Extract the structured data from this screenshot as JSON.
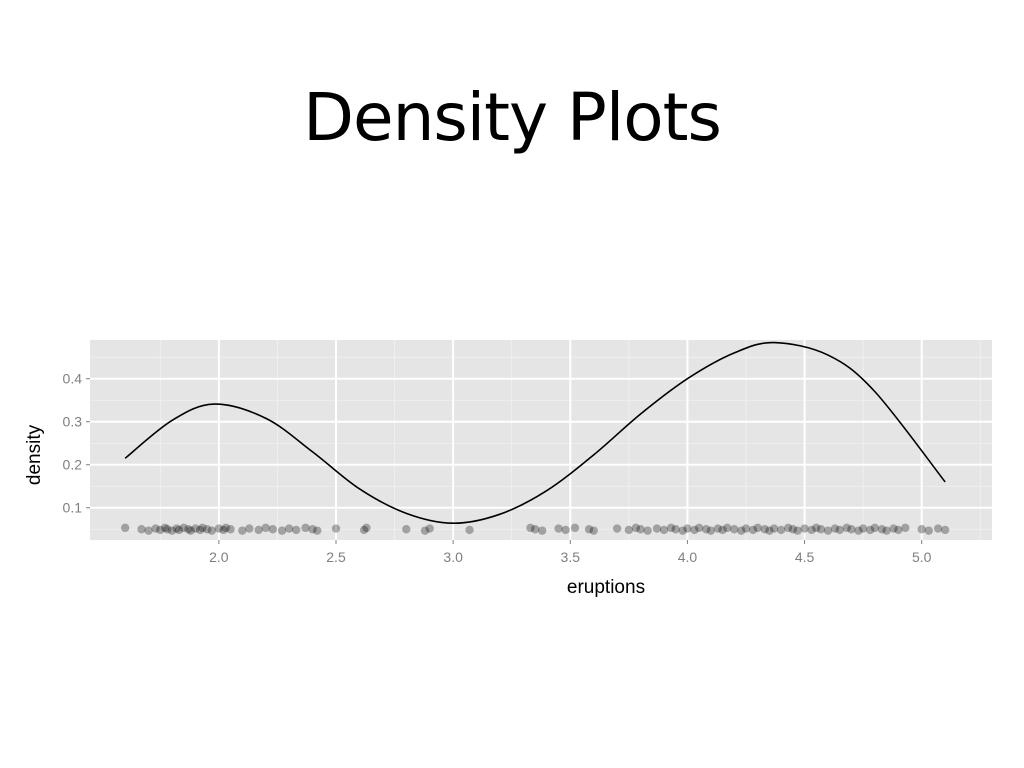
{
  "slide": {
    "title": "Density Plots"
  },
  "chart_data": {
    "type": "line",
    "xlabel": "eruptions",
    "ylabel": "density",
    "xlim": [
      1.45,
      5.3
    ],
    "ylim": [
      0.025,
      0.49
    ],
    "x_ticks": [
      "2.0",
      "2.5",
      "3.0",
      "3.5",
      "4.0",
      "4.5",
      "5.0"
    ],
    "y_ticks": [
      "0.1",
      "0.2",
      "0.3",
      "0.4"
    ],
    "grid": true,
    "colors": {
      "panel": "#e5e5e5",
      "grid": "#ffffff",
      "line": "#000000",
      "points": "#000000"
    },
    "series": [
      {
        "x": [
          1.6,
          1.8,
          1.98,
          2.2,
          2.4,
          2.6,
          2.8,
          3.0,
          3.2,
          3.4,
          3.6,
          3.8,
          4.0,
          4.2,
          4.37,
          4.6,
          4.8,
          5.1
        ],
        "values": [
          0.215,
          0.303,
          0.341,
          0.308,
          0.23,
          0.144,
          0.087,
          0.064,
          0.085,
          0.14,
          0.223,
          0.318,
          0.4,
          0.46,
          0.484,
          0.455,
          0.37,
          0.16
        ]
      }
    ],
    "rug": {
      "y": 0.05,
      "x": [
        1.6,
        1.67,
        1.7,
        1.73,
        1.75,
        1.77,
        1.78,
        1.8,
        1.82,
        1.83,
        1.85,
        1.87,
        1.88,
        1.9,
        1.92,
        1.93,
        1.95,
        1.97,
        2.0,
        2.02,
        2.03,
        2.05,
        2.1,
        2.13,
        2.17,
        2.2,
        2.23,
        2.27,
        2.3,
        2.33,
        2.37,
        2.4,
        2.42,
        2.5,
        2.62,
        2.63,
        2.8,
        2.88,
        2.9,
        3.07,
        3.33,
        3.35,
        3.38,
        3.45,
        3.48,
        3.52,
        3.58,
        3.6,
        3.7,
        3.75,
        3.78,
        3.8,
        3.83,
        3.87,
        3.9,
        3.93,
        3.95,
        3.98,
        4.0,
        4.03,
        4.05,
        4.08,
        4.1,
        4.13,
        4.15,
        4.17,
        4.2,
        4.23,
        4.25,
        4.28,
        4.3,
        4.33,
        4.35,
        4.37,
        4.4,
        4.43,
        4.45,
        4.47,
        4.5,
        4.53,
        4.55,
        4.57,
        4.6,
        4.63,
        4.65,
        4.68,
        4.7,
        4.73,
        4.75,
        4.78,
        4.8,
        4.83,
        4.85,
        4.88,
        4.9,
        4.93,
        5.0,
        5.03,
        5.07,
        5.1
      ]
    }
  }
}
